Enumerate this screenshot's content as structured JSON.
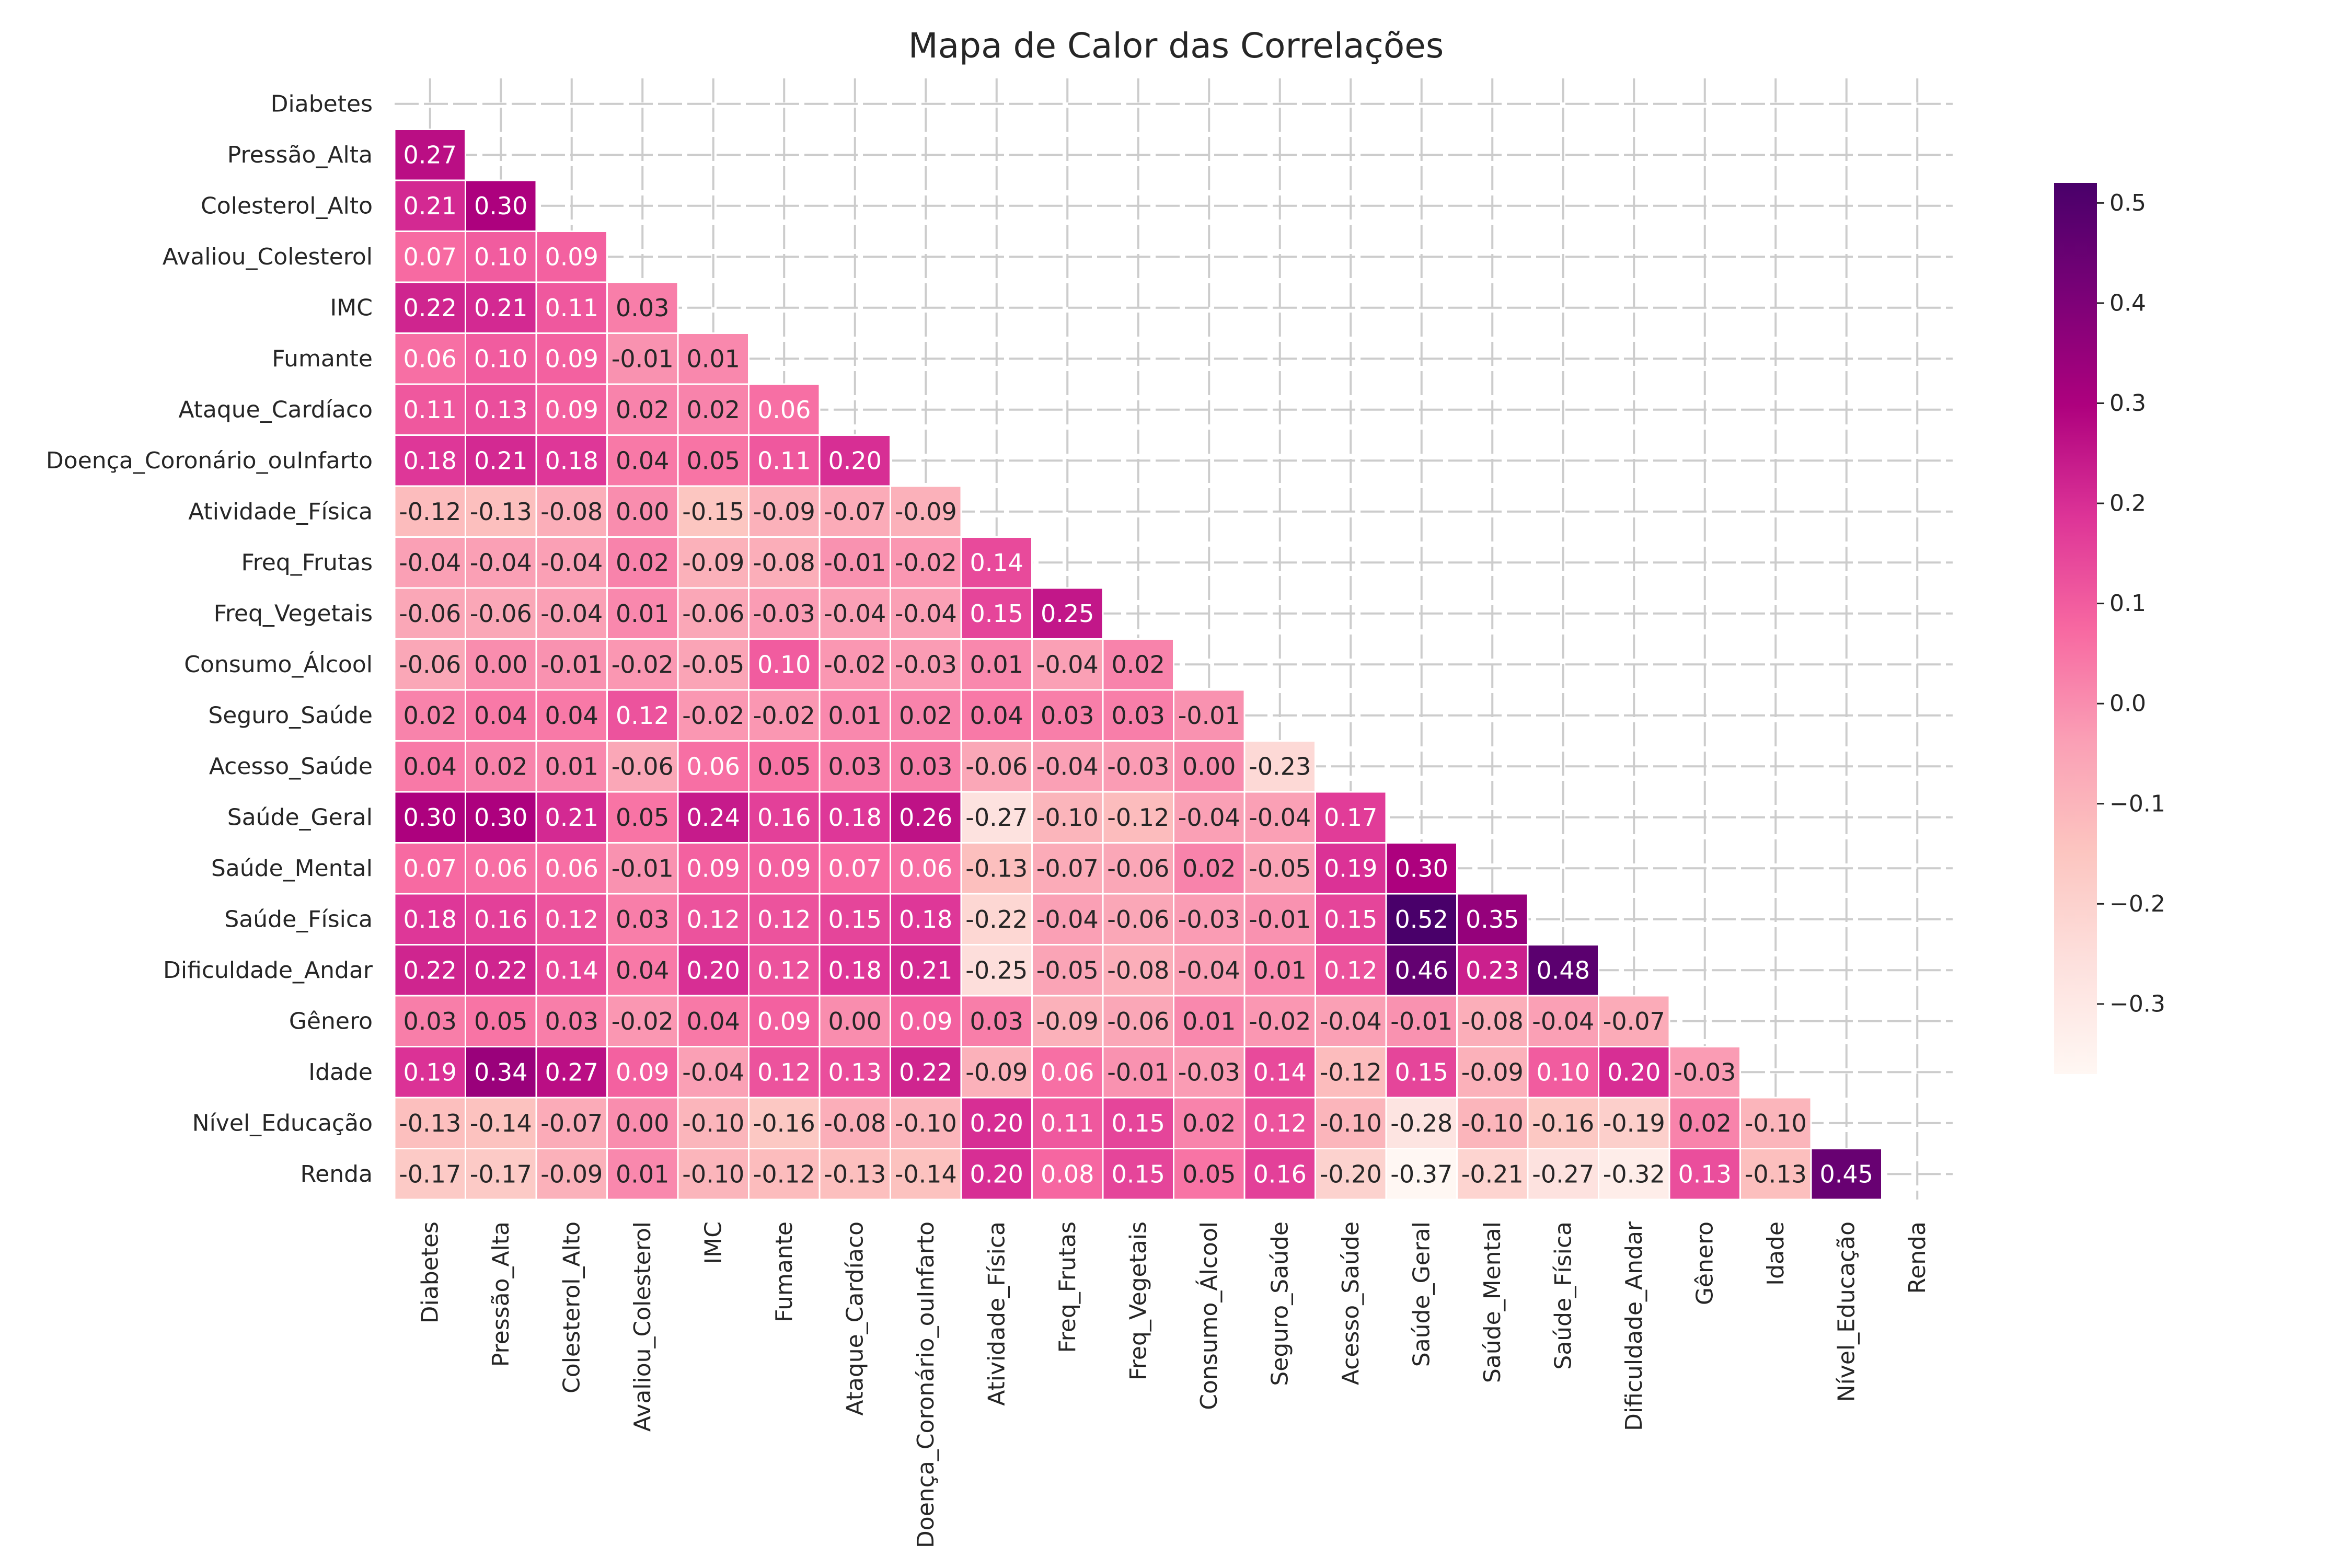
{
  "chart_data": {
    "type": "heatmap",
    "title": "Mapa de Calor das Correlações",
    "variables": [
      "Diabetes",
      "Pressão_Alta",
      "Colesterol_Alto",
      "Avaliou_Colesterol",
      "IMC",
      "Fumante",
      "Ataque_Cardíaco",
      "Doença_Coronário_ouInfarto",
      "Atividade_Física",
      "Freq_Frutas",
      "Freq_Vegetais",
      "Consumo_Álcool",
      "Seguro_Saúde",
      "Acesso_Saúde",
      "Saúde_Geral",
      "Saúde_Mental",
      "Saúde_Física",
      "Dificuldade_Andar",
      "Gênero",
      "Idade",
      "Nível_Educação",
      "Renda"
    ],
    "matrix": [
      [],
      [
        0.27
      ],
      [
        0.21,
        0.3
      ],
      [
        0.07,
        0.1,
        0.09
      ],
      [
        0.22,
        0.21,
        0.11,
        0.03
      ],
      [
        0.06,
        0.1,
        0.09,
        -0.01,
        0.01
      ],
      [
        0.11,
        0.13,
        0.09,
        0.02,
        0.02,
        0.06
      ],
      [
        0.18,
        0.21,
        0.18,
        0.04,
        0.05,
        0.11,
        0.2
      ],
      [
        -0.12,
        -0.13,
        -0.08,
        0.0,
        -0.15,
        -0.09,
        -0.07,
        -0.09
      ],
      [
        -0.04,
        -0.04,
        -0.04,
        0.02,
        -0.09,
        -0.08,
        -0.01,
        -0.02,
        0.14
      ],
      [
        -0.06,
        -0.06,
        -0.04,
        0.01,
        -0.06,
        -0.03,
        -0.04,
        -0.04,
        0.15,
        0.25
      ],
      [
        -0.06,
        -0.0,
        -0.01,
        -0.02,
        -0.05,
        0.1,
        -0.02,
        -0.03,
        0.01,
        -0.04,
        0.02
      ],
      [
        0.02,
        0.04,
        0.04,
        0.12,
        -0.02,
        -0.02,
        0.01,
        0.02,
        0.04,
        0.03,
        0.03,
        -0.01
      ],
      [
        0.04,
        0.02,
        0.01,
        -0.06,
        0.06,
        0.05,
        0.03,
        0.03,
        -0.06,
        -0.04,
        -0.03,
        0.0,
        -0.23
      ],
      [
        0.3,
        0.3,
        0.21,
        0.05,
        0.24,
        0.16,
        0.18,
        0.26,
        -0.27,
        -0.1,
        -0.12,
        -0.04,
        -0.04,
        0.17
      ],
      [
        0.07,
        0.06,
        0.06,
        -0.01,
        0.09,
        0.09,
        0.07,
        0.06,
        -0.13,
        -0.07,
        -0.06,
        0.02,
        -0.05,
        0.19,
        0.3
      ],
      [
        0.18,
        0.16,
        0.12,
        0.03,
        0.12,
        0.12,
        0.15,
        0.18,
        -0.22,
        -0.04,
        -0.06,
        -0.03,
        -0.01,
        0.15,
        0.52,
        0.35
      ],
      [
        0.22,
        0.22,
        0.14,
        0.04,
        0.2,
        0.12,
        0.18,
        0.21,
        -0.25,
        -0.05,
        -0.08,
        -0.04,
        0.01,
        0.12,
        0.46,
        0.23,
        0.48
      ],
      [
        0.03,
        0.05,
        0.03,
        -0.02,
        0.04,
        0.09,
        0.0,
        0.09,
        0.03,
        -0.09,
        -0.06,
        0.01,
        -0.02,
        -0.04,
        -0.01,
        -0.08,
        -0.04,
        -0.07
      ],
      [
        0.19,
        0.34,
        0.27,
        0.09,
        -0.04,
        0.12,
        0.13,
        0.22,
        -0.09,
        0.06,
        -0.01,
        -0.03,
        0.14,
        -0.12,
        0.15,
        -0.09,
        0.1,
        0.2,
        -0.03
      ],
      [
        -0.13,
        -0.14,
        -0.07,
        0.0,
        -0.1,
        -0.16,
        -0.08,
        -0.1,
        0.2,
        0.11,
        0.15,
        0.02,
        0.12,
        -0.1,
        -0.28,
        -0.1,
        -0.16,
        -0.19,
        0.02,
        -0.1
      ],
      [
        -0.17,
        -0.17,
        -0.09,
        0.01,
        -0.1,
        -0.12,
        -0.13,
        -0.14,
        0.2,
        0.08,
        0.15,
        0.05,
        0.16,
        -0.2,
        -0.37,
        -0.21,
        -0.27,
        -0.32,
        0.13,
        -0.13,
        0.45
      ]
    ],
    "value_format": "0.00",
    "colormap": "RdPu",
    "color_stops": [
      "#fff7f3",
      "#fde0dd",
      "#fcc5c0",
      "#fa9fb5",
      "#f768a1",
      "#dd3497",
      "#ae017e",
      "#7a0177",
      "#49006a"
    ],
    "vmin": -0.37,
    "vmax": 0.52,
    "colorbar_ticks": [
      0.5,
      0.4,
      0.3,
      0.2,
      0.1,
      0.0,
      -0.1,
      -0.2,
      -0.3
    ],
    "colorbar_tick_labels": [
      "0.5",
      "0.4",
      "0.3",
      "0.2",
      "0.1",
      "0.0",
      "−0.1",
      "−0.2",
      "−0.3"
    ],
    "mask": "upper-triangle",
    "grid": true,
    "legend": "colorbar-right"
  }
}
